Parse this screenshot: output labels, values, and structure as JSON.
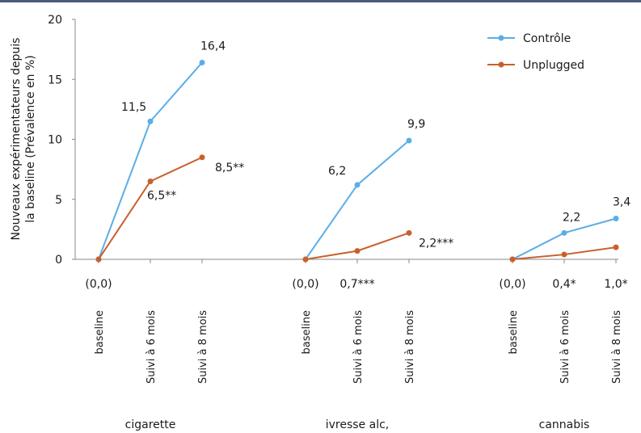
{
  "chart_data": {
    "type": "line",
    "ylabel_line1": "Nouveaux expérimentateurs depuis",
    "ylabel_line2": "la baseline (Prévalence en %)",
    "ylim": [
      0,
      20
    ],
    "yticks": [
      "0",
      "5",
      "10",
      "15",
      "20"
    ],
    "grid": false,
    "legend_position": "top-right",
    "colors": {
      "controle": "#5aaee6",
      "unplugged": "#c8602c",
      "axis": "#888888"
    },
    "legend": [
      "Contrôle",
      "Unplugged"
    ],
    "groups": [
      {
        "name": "cigarette",
        "categories": [
          "baseline",
          "Suivi à 6 mois",
          "Suivi à 8 mois"
        ],
        "series": [
          {
            "name": "Contrôle",
            "values": [
              0,
              11.5,
              16.4
            ],
            "labels": [
              "",
              "11,5",
              "16,4"
            ]
          },
          {
            "name": "Unplugged",
            "values": [
              0,
              6.5,
              8.5
            ],
            "labels": [
              "",
              "6,5**",
              "8,5**"
            ]
          }
        ],
        "bottom_labels": [
          "(0,0)",
          "",
          ""
        ]
      },
      {
        "name": "ivresse alc,",
        "categories": [
          "baseline",
          "Suivi à 6 mois",
          "Suivi à 8 mois"
        ],
        "series": [
          {
            "name": "Contrôle",
            "values": [
              0,
              6.2,
              9.9
            ],
            "labels": [
              "",
              "6,2",
              "9,9"
            ]
          },
          {
            "name": "Unplugged",
            "values": [
              0,
              0.7,
              2.2
            ],
            "labels": [
              "",
              "",
              "2,2***"
            ]
          }
        ],
        "bottom_labels": [
          "(0,0)",
          "0,7***",
          ""
        ]
      },
      {
        "name": "cannabis",
        "categories": [
          "baseline",
          "Suivi à 6 mois",
          "Suivi à 8 mois"
        ],
        "series": [
          {
            "name": "Contrôle",
            "values": [
              0,
              2.2,
              3.4
            ],
            "labels": [
              "",
              "2,2",
              "3,4"
            ]
          },
          {
            "name": "Unplugged",
            "values": [
              0,
              0.4,
              1.0
            ],
            "labels": [
              "",
              "",
              ""
            ]
          }
        ],
        "bottom_labels": [
          "(0,0)",
          "0,4*",
          "1,0*"
        ]
      }
    ]
  }
}
